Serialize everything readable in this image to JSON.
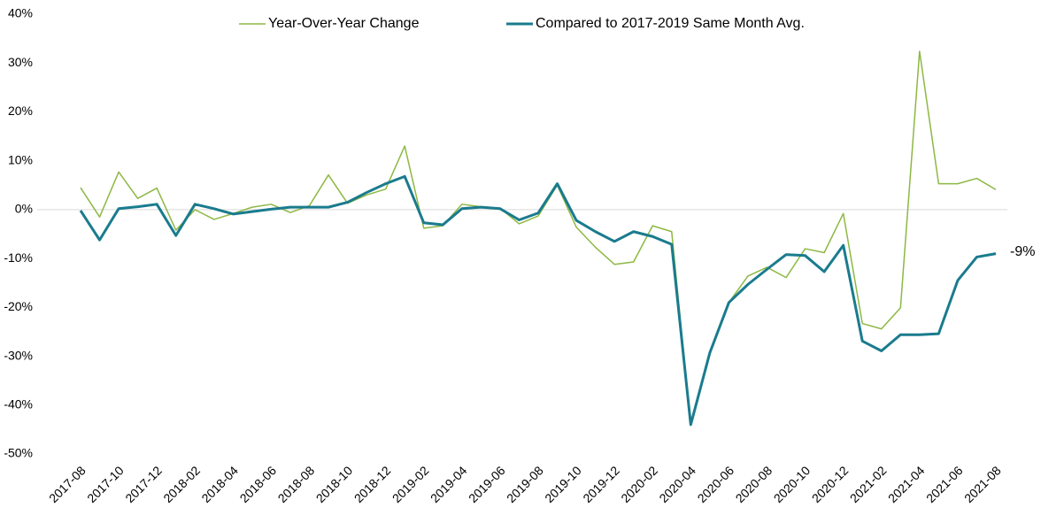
{
  "chart_data": {
    "type": "line",
    "categories": [
      "2017-08",
      null,
      "2017-10",
      null,
      "2017-12",
      null,
      "2018-02",
      null,
      "2018-04",
      null,
      "2018-06",
      null,
      "2018-08",
      null,
      "2018-10",
      null,
      "2018-12",
      null,
      "2019-02",
      null,
      "2019-04",
      null,
      "2019-06",
      null,
      "2019-08",
      null,
      "2019-10",
      null,
      "2019-12",
      null,
      "2020-02",
      null,
      "2020-04",
      null,
      "2020-06",
      null,
      "2020-08",
      null,
      "2020-10",
      null,
      "2020-12",
      null,
      "2021-02",
      null,
      "2021-04",
      null,
      "2021-06",
      null,
      "2021-08"
    ],
    "series": [
      {
        "name": "Year-Over-Year Change",
        "color": "#8db843",
        "width": 1.5,
        "values": [
          4.5,
          -1.5,
          7.7,
          2.3,
          4.4,
          -4.2,
          0,
          -2,
          -0.8,
          0.5,
          1.1,
          -0.6,
          0.8,
          7.1,
          1.3,
          3.0,
          4.2,
          13,
          -3.8,
          -3.3,
          1.1,
          0.6,
          0.3,
          -2.9,
          -1.3,
          5.0,
          -3.6,
          -7.7,
          -11.2,
          -10.7,
          -3.3,
          -4.5,
          -43.9,
          -29.5,
          -19,
          -13.6,
          -11.8,
          -13.9,
          -8,
          -8.8,
          -0.8,
          -23.3,
          -24.4,
          -20.1,
          32.4,
          5.3,
          5.3,
          6.4,
          4.1
        ]
      },
      {
        "name": "Compared to 2017-2019 Same Month Avg.",
        "color": "#1a7b8e",
        "width": 3,
        "values": [
          -0.2,
          -6.2,
          0.2,
          0.6,
          1.1,
          -5.3,
          1.1,
          0.2,
          -0.9,
          -0.4,
          0.1,
          0.5,
          0.5,
          0.5,
          1.5,
          3.5,
          5.3,
          6.8,
          -2.7,
          -3.1,
          0.2,
          0.5,
          0.2,
          -2.1,
          -0.7,
          5.3,
          -2.2,
          -4.5,
          -6.5,
          -4.5,
          -5.5,
          -7.1,
          -44,
          -29.3,
          -19,
          -15.3,
          -12.2,
          -9.2,
          -9.4,
          -12.7,
          -7.3,
          -26.9,
          -28.9,
          -25.6,
          -25.6,
          -25.4,
          -14.5,
          -9.7,
          -9
        ],
        "value_labels": [
          null,
          null,
          null,
          null,
          null,
          null,
          null,
          null,
          null,
          null,
          null,
          null,
          null,
          null,
          null,
          null,
          null,
          null,
          null,
          null,
          null,
          null,
          null,
          null,
          null,
          null,
          null,
          null,
          null,
          null,
          null,
          null,
          null,
          null,
          null,
          null,
          null,
          null,
          null,
          null,
          null,
          null,
          null,
          null,
          null,
          null,
          null,
          null,
          "-9%"
        ]
      }
    ],
    "ylim": [
      -50,
      40
    ],
    "yticks": [
      {
        "value": -50,
        "label": "-50%"
      },
      {
        "value": -40,
        "label": "-40%"
      },
      {
        "value": -30,
        "label": "-30%"
      },
      {
        "value": -20,
        "label": "-20%"
      },
      {
        "value": -10,
        "label": "-10%"
      },
      {
        "value": 0,
        "label": "0%"
      },
      {
        "value": 10,
        "label": "10%"
      },
      {
        "value": 20,
        "label": "20%"
      },
      {
        "value": 30,
        "label": "30%"
      },
      {
        "value": 40,
        "label": "40%"
      }
    ],
    "grid": false,
    "legend": "top"
  }
}
